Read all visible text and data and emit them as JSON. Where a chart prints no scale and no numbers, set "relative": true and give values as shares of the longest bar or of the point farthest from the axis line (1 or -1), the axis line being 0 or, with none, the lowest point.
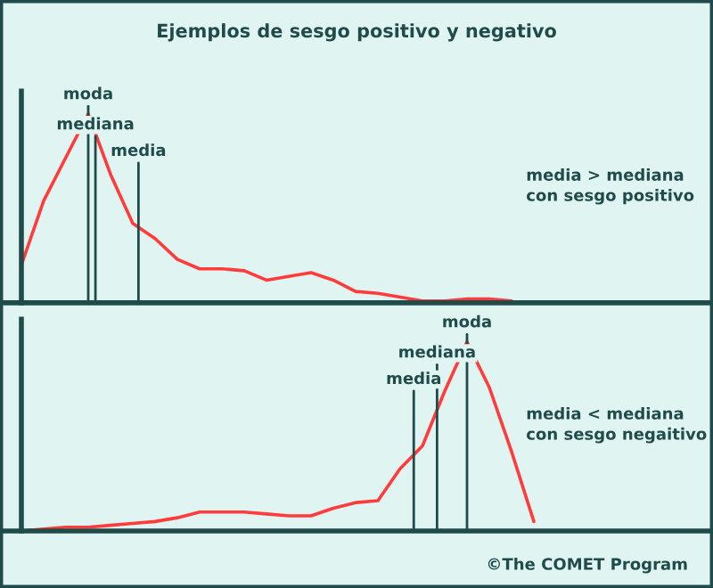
{
  "chart_data": [
    {
      "type": "line",
      "title": "Ejemplos de sesgo positivo y negativo",
      "relative": true,
      "categories": [
        null,
        null,
        null,
        null,
        null,
        null,
        null,
        null,
        null,
        null,
        null,
        null,
        null,
        null,
        null,
        null,
        null,
        null,
        null,
        null,
        null,
        null,
        null,
        null,
        null,
        null,
        null,
        null,
        null,
        null,
        null
      ],
      "series": [
        {
          "color": "#ff3b3b",
          "values": [
            0.2,
            0.54,
            0.77,
            1.0,
            0.68,
            0.42,
            0.34,
            0.23,
            0.18,
            0.18,
            0.17,
            0.12,
            0.14,
            0.16,
            0.12,
            0.06,
            0.05,
            0.03,
            0.01,
            0.01,
            0.02,
            0.02,
            0.01,
            null,
            null,
            null,
            null,
            null,
            null,
            null,
            null
          ]
        }
      ],
      "annotations": [
        "moda",
        "mediana",
        "media",
        "media > mediana\ncon sesgo positivo"
      ]
    },
    {
      "type": "line",
      "relative": true,
      "categories": [
        null,
        null,
        null,
        null,
        null,
        null,
        null,
        null,
        null,
        null,
        null,
        null,
        null,
        null,
        null,
        null,
        null,
        null,
        null,
        null,
        null,
        null,
        null,
        null,
        null,
        null,
        null,
        null,
        null,
        null,
        null
      ],
      "series": [
        {
          "color": "#ff3b3b",
          "values": [
            0.0,
            0.01,
            0.02,
            0.02,
            0.03,
            0.04,
            0.05,
            0.07,
            0.1,
            0.1,
            0.1,
            0.09,
            0.08,
            0.08,
            0.12,
            0.15,
            0.16,
            0.33,
            0.45,
            0.74,
            1.0,
            0.76,
            0.42,
            0.05,
            null,
            null,
            null,
            null,
            null,
            null,
            null
          ]
        }
      ],
      "annotations": [
        "media",
        "mediana",
        "moda",
        "media < mediana\ncon sesgo negaitivo",
        "©The COMET Program"
      ]
    }
  ]
}
